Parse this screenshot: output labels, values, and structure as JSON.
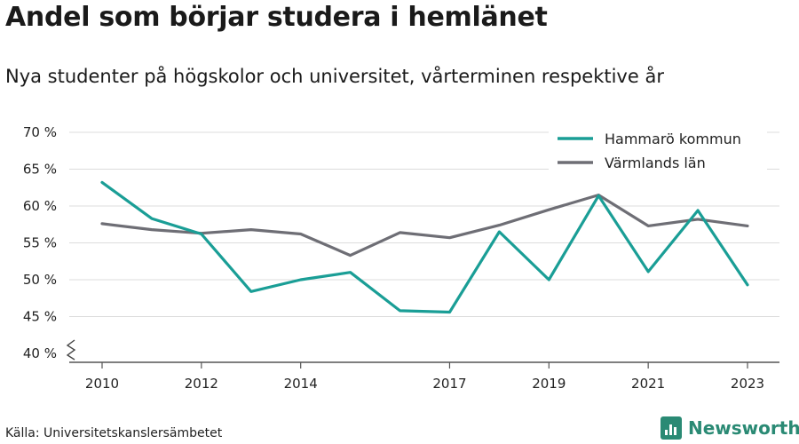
{
  "title": "Andel som börjar studera i hemlänet",
  "subtitle": "Nya studenter på högskolor och universitet, vårterminen respektive år",
  "source": "Källa: Universitetskanslersämbetet",
  "brand": {
    "name": "Newsworthy",
    "color": "#2a8a74",
    "icon": "newsworthy-bar-chart-icon"
  },
  "chart_data": {
    "type": "line",
    "x": [
      2010,
      2011,
      2012,
      2013,
      2014,
      2015,
      2016,
      2017,
      2018,
      2019,
      2020,
      2021,
      2022,
      2023
    ],
    "x_tick_labels": [
      "2010",
      "2012",
      "2014",
      "2017",
      "2019",
      "2021",
      "2023"
    ],
    "y_tick_labels": [
      "40 %",
      "45 %",
      "50 %",
      "55 %",
      "60 %",
      "65 %",
      "70 %"
    ],
    "ylim": [
      40,
      70
    ],
    "y_axis_break": true,
    "grid": true,
    "legend_position": "top-right",
    "series": [
      {
        "name": "Hammarö kommun",
        "color": "#1a9e96",
        "values": [
          63.2,
          58.3,
          56.2,
          48.4,
          50.0,
          51.0,
          45.8,
          45.6,
          56.5,
          50.0,
          61.4,
          51.1,
          59.4,
          49.3
        ]
      },
      {
        "name": "Värmlands län",
        "color": "#6e6e75",
        "values": [
          57.6,
          56.8,
          56.3,
          56.8,
          56.2,
          53.3,
          56.4,
          55.7,
          57.4,
          59.5,
          61.5,
          57.3,
          58.2,
          57.3
        ]
      }
    ]
  }
}
